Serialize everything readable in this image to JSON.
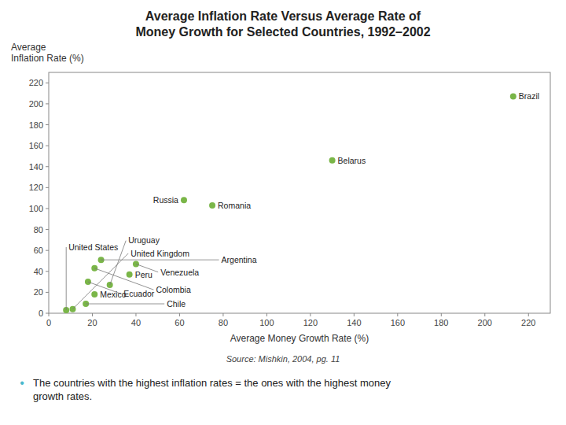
{
  "chart_data": {
    "type": "scatter",
    "title": "Average Inflation Rate Versus Average Rate of\nMoney Growth for Selected Countries, 1992–2002",
    "xlabel": "Average Money Growth Rate (%)",
    "ylabel": "Average\nInflation Rate (%)",
    "x": [
      8,
      11,
      18,
      21,
      24,
      40,
      37,
      28,
      21,
      17,
      62,
      75,
      130,
      213
    ],
    "values": [
      3,
      4,
      30,
      43,
      51,
      47,
      37,
      27,
      18,
      9,
      108,
      103,
      146,
      207
    ],
    "annotations": [
      "United States",
      "United Kingdom",
      "Ecuador",
      "Colombia",
      "Argentina",
      "Venezuela",
      "Peru",
      "Uruguay",
      "Mexico",
      "Chile",
      "Russia",
      "Romania",
      "Belarus",
      "Brazil"
    ],
    "color": "#7ab648",
    "xlim": [
      0,
      230
    ],
    "ylim": [
      0,
      230
    ],
    "xticks": [
      0,
      20,
      40,
      60,
      80,
      100,
      120,
      140,
      160,
      180,
      200,
      220
    ],
    "yticks": [
      0,
      20,
      40,
      60,
      80,
      100,
      120,
      140,
      160,
      180,
      200,
      220
    ],
    "grid": false,
    "source": "Source: Mishkin, 2004, pg. 11",
    "footnote_bullet": "•",
    "footnote": "The countries with the highest inflation rates = the ones with the highest money\ngrowth rates."
  }
}
